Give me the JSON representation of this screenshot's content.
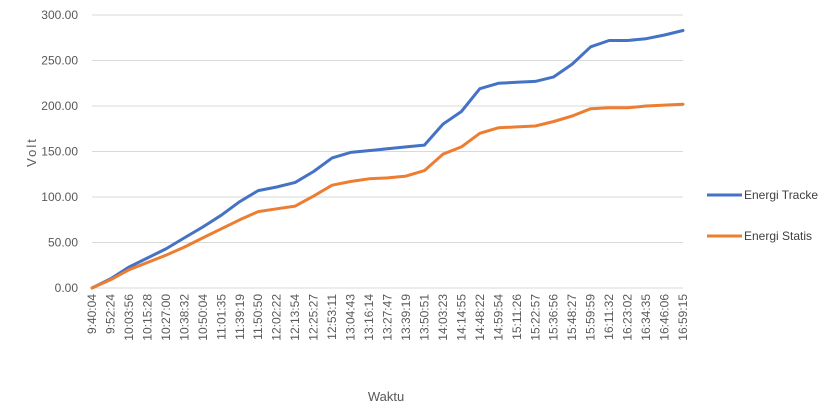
{
  "chart_data": {
    "type": "line",
    "xlabel": "Waktu",
    "ylabel": "Volt",
    "ylim": [
      0,
      300
    ],
    "yticks": [
      "0.00",
      "50.00",
      "100.00",
      "150.00",
      "200.00",
      "250.00",
      "300.00"
    ],
    "ytick_values": [
      0,
      50,
      100,
      150,
      200,
      250,
      300
    ],
    "grid": true,
    "legend": "right",
    "categories": [
      "9:40:04",
      "9:52:24",
      "10:03:56",
      "10:15:28",
      "10:27:00",
      "10:38:32",
      "10:50:04",
      "11:01:35",
      "11:39:19",
      "11:50:50",
      "12:02:22",
      "12:13:54",
      "12:25:27",
      "12:53:11",
      "13:04:43",
      "13:16:14",
      "13:27:47",
      "13:39:19",
      "13:50:51",
      "14:03:23",
      "14:14:55",
      "14:48:22",
      "14:59:54",
      "15:11:26",
      "15:22:57",
      "15:36:56",
      "15:48:27",
      "15:59:59",
      "16:11:32",
      "16:23:02",
      "16:34:35",
      "16:46:06",
      "16:59:15"
    ],
    "series": [
      {
        "name": "Energi Tracke",
        "color": "#4472C4",
        "values": [
          0,
          10,
          23,
          33,
          43,
          55,
          67,
          80,
          95,
          107,
          111,
          116,
          128,
          143,
          149,
          151,
          153,
          155,
          157,
          180,
          194,
          219,
          225,
          226,
          227,
          232,
          246,
          265,
          272,
          272,
          274,
          278,
          283
        ]
      },
      {
        "name": "Energi Statis",
        "color": "#ED7D31",
        "values": [
          0,
          9,
          20,
          28,
          36,
          45,
          55,
          65,
          75,
          84,
          87,
          90,
          101,
          113,
          117,
          120,
          121,
          123,
          129,
          147,
          155,
          170,
          176,
          177,
          178,
          183,
          189,
          197,
          198,
          198,
          200,
          201,
          202
        ]
      }
    ]
  }
}
